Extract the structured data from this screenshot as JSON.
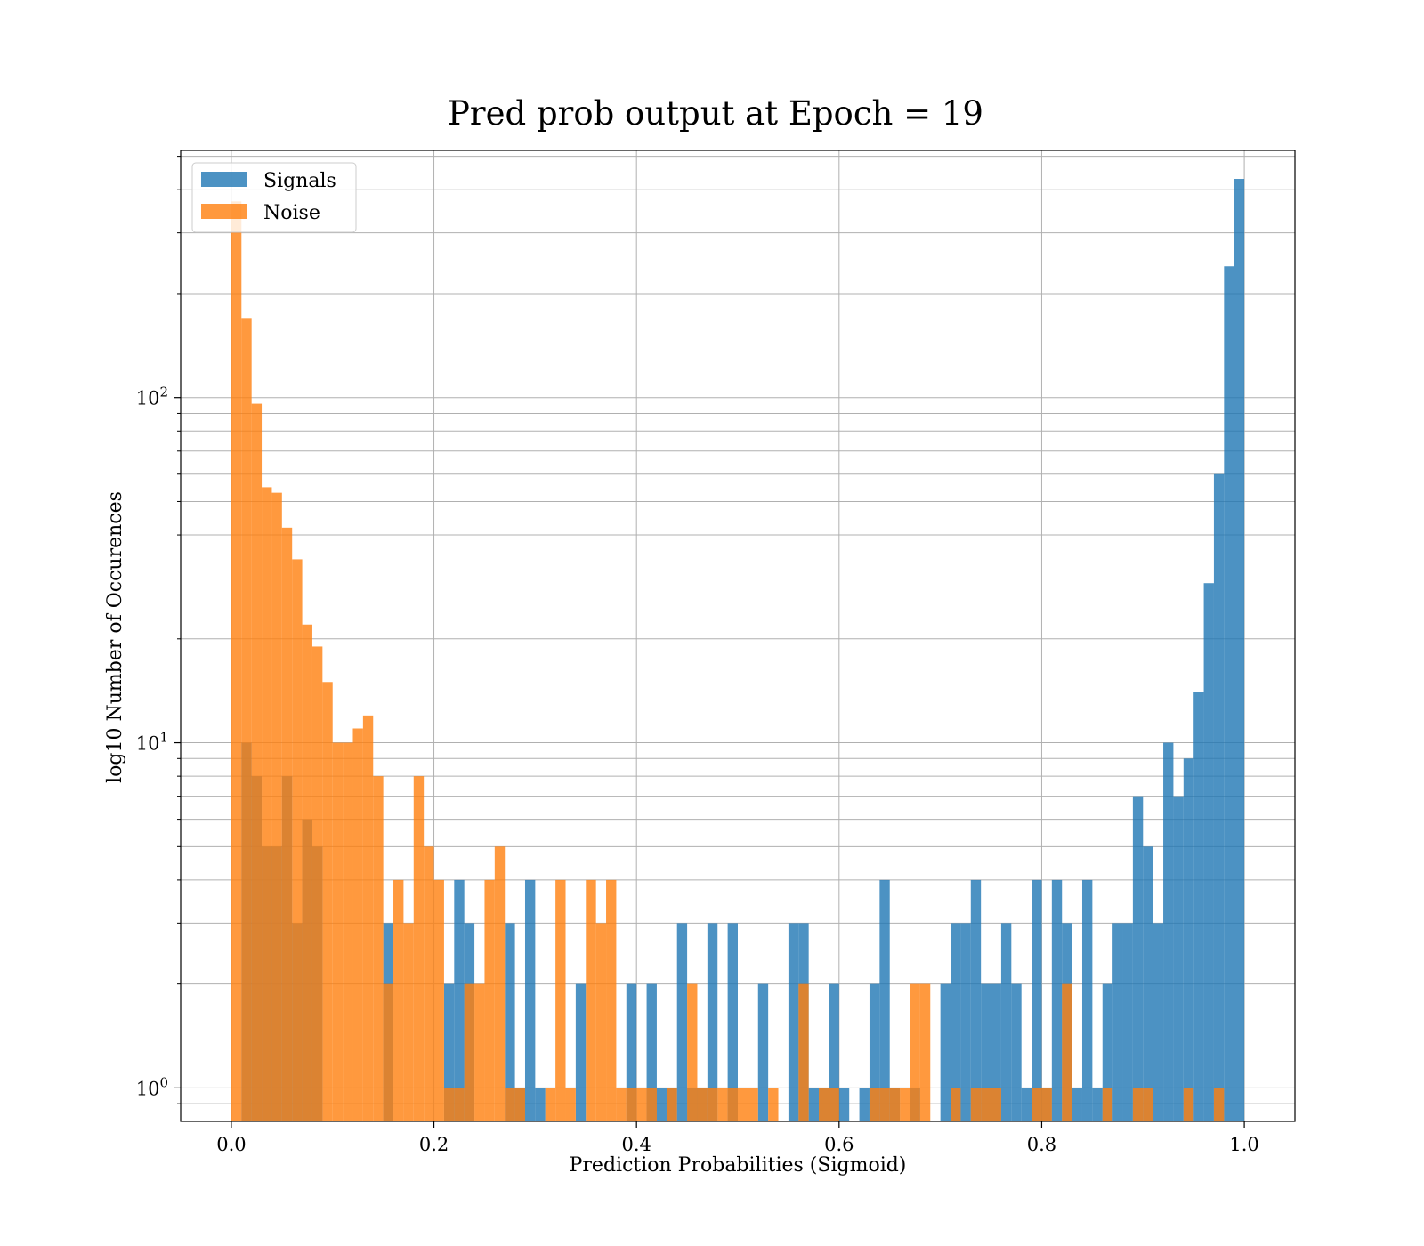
{
  "chart_data": {
    "type": "bar",
    "subtype": "overlapping-histogram",
    "title": "Pred prob output at Epoch = 19",
    "xlabel": "Prediction Probabilities (Sigmoid)",
    "ylabel": "log10 Number of Occurences",
    "xlim": [
      -0.05,
      1.05
    ],
    "ylim": [
      0.8,
      520
    ],
    "yscale": "log",
    "grid": true,
    "legend_position": "top-left",
    "x_ticks": [
      0.0,
      0.2,
      0.4,
      0.6,
      0.8,
      1.0
    ],
    "x_tick_labels": [
      "0.0",
      "0.2",
      "0.4",
      "0.6",
      "0.8",
      "1.0"
    ],
    "y_ticks": [
      1,
      10,
      100
    ],
    "y_tick_labels": [
      {
        "base": "10",
        "exp": "0"
      },
      {
        "base": "10",
        "exp": "1"
      },
      {
        "base": "10",
        "exp": "2"
      }
    ],
    "bin_range": [
      0.0,
      1.0
    ],
    "bin_count": 100,
    "series": [
      {
        "name": "Signals",
        "color": "#1f77b4",
        "opacity": 0.8,
        "values": [
          0,
          10,
          8,
          5,
          5,
          8,
          3,
          6,
          5,
          0,
          0,
          0,
          0,
          0,
          0,
          3,
          0,
          0,
          0,
          0,
          0,
          2,
          4,
          3,
          0,
          0,
          0,
          3,
          1,
          4,
          1,
          0,
          0,
          0,
          2,
          0,
          0,
          0,
          0,
          2,
          0,
          2,
          1,
          1,
          3,
          1,
          1,
          3,
          0,
          3,
          0,
          0,
          2,
          0,
          0,
          3,
          3,
          1,
          1,
          2,
          1,
          0,
          1,
          2,
          4,
          1,
          0,
          1,
          0,
          0,
          2,
          3,
          3,
          4,
          2,
          2,
          3,
          2,
          1,
          4,
          1,
          4,
          3,
          1,
          4,
          1,
          2,
          3,
          3,
          7,
          5,
          3,
          10,
          7,
          9,
          14,
          29,
          60,
          240,
          430
        ]
      },
      {
        "name": "Noise",
        "color": "#ff7f0e",
        "opacity": 0.8,
        "values": [
          370,
          170,
          96,
          55,
          53,
          42,
          34,
          22,
          19,
          15,
          10,
          10,
          11,
          12,
          8,
          2,
          4,
          3,
          8,
          5,
          4,
          1,
          1,
          2,
          2,
          4,
          5,
          1,
          1,
          0,
          0,
          1,
          4,
          1,
          0,
          4,
          3,
          4,
          1,
          1,
          1,
          1,
          0,
          1,
          0,
          2,
          1,
          1,
          1,
          1,
          1,
          1,
          0,
          1,
          0,
          0,
          2,
          0,
          1,
          1,
          0,
          0,
          0,
          1,
          1,
          1,
          1,
          2,
          2,
          0,
          0,
          1,
          0,
          1,
          1,
          1,
          0,
          0,
          0,
          1,
          1,
          0,
          2,
          0,
          0,
          0,
          1,
          0,
          0,
          1,
          1,
          0,
          0,
          0,
          1,
          0,
          0,
          1,
          0,
          0
        ]
      }
    ]
  }
}
